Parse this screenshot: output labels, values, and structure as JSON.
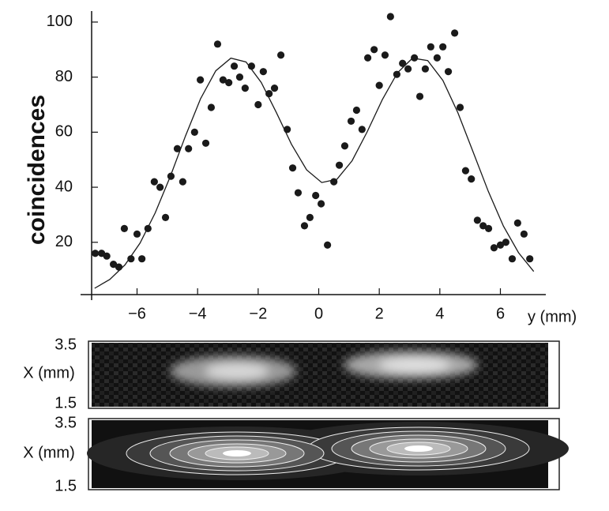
{
  "chart_data": [
    {
      "type": "scatter",
      "ylabel": "coincidences",
      "xlabel": "y (mm)",
      "color": "#1a1a1a",
      "line_color": "#1a1a1a",
      "xlim": [
        -7.5,
        7.5
      ],
      "ylim": [
        1,
        104
      ],
      "xticks": [
        {
          "value": -6,
          "label": "−6"
        },
        {
          "value": -4,
          "label": "−4"
        },
        {
          "value": -2,
          "label": "−2"
        },
        0,
        2,
        4,
        6
      ],
      "yticks": [
        20,
        40,
        60,
        80,
        100
      ],
      "x": [
        -7.38,
        -7.17,
        -7.0,
        -6.78,
        -6.6,
        -6.42,
        -6.2,
        -6.0,
        -5.84,
        -5.64,
        -5.43,
        -5.24,
        -5.06,
        -4.88,
        -4.67,
        -4.49,
        -4.3,
        -4.1,
        -3.91,
        -3.73,
        -3.55,
        -3.34,
        -3.16,
        -2.97,
        -2.79,
        -2.61,
        -2.43,
        -2.22,
        -2.0,
        -1.83,
        -1.64,
        -1.46,
        -1.25,
        -1.04,
        -0.86,
        -0.68,
        -0.47,
        -0.29,
        -0.1,
        0.08,
        0.29,
        0.5,
        0.68,
        0.86,
        1.07,
        1.25,
        1.43,
        1.62,
        1.83,
        2.0,
        2.19,
        2.37,
        2.58,
        2.77,
        2.95,
        3.16,
        3.34,
        3.52,
        3.7,
        3.91,
        4.1,
        4.28,
        4.49,
        4.67,
        4.85,
        5.04,
        5.24,
        5.43,
        5.61,
        5.79,
        6.0,
        6.18,
        6.39,
        6.57,
        6.78,
        6.97
      ],
      "values": [
        16,
        16,
        15,
        12,
        11,
        25,
        14,
        23,
        14,
        25,
        42,
        40,
        29,
        44,
        54,
        42,
        54,
        60,
        79,
        56,
        69,
        92,
        79,
        78,
        84,
        80,
        76,
        84,
        70,
        82,
        74,
        76,
        88,
        61,
        47,
        38,
        26,
        29,
        37,
        34,
        19,
        42,
        48,
        55,
        64,
        68,
        61,
        87,
        90,
        77,
        88,
        102,
        81,
        85,
        83,
        87,
        73,
        83,
        91,
        87,
        91,
        82,
        96,
        69,
        46,
        43,
        28,
        26,
        25,
        18,
        19,
        20,
        14,
        27,
        23,
        14
      ],
      "fit_x": [
        -7.4,
        -6.9,
        -6.4,
        -5.9,
        -5.4,
        -4.9,
        -4.4,
        -3.9,
        -3.4,
        -2.9,
        -2.4,
        -1.9,
        -1.4,
        -0.9,
        -0.4,
        0.1,
        0.6,
        1.1,
        1.6,
        2.1,
        2.6,
        3.1,
        3.6,
        4.1,
        4.6,
        5.1,
        5.6,
        6.1,
        6.6,
        7.1
      ],
      "fit_values": [
        3.3,
        6.5,
        11.8,
        19.7,
        30.7,
        44.0,
        58.6,
        72.2,
        82.3,
        86.9,
        85.5,
        78.1,
        67.2,
        55.6,
        46.3,
        41.7,
        42.9,
        49.6,
        60.1,
        71.8,
        81.6,
        86.9,
        86.0,
        78.8,
        67.0,
        52.8,
        38.5,
        25.9,
        16.2,
        9.4
      ]
    },
    {
      "type": "heatmap",
      "ylabel": "X (mm)",
      "ylim": [
        1.5,
        3.5
      ],
      "yticks": [
        1.5,
        3.5
      ]
    },
    {
      "type": "contour",
      "ylabel": "X (mm)",
      "ylim": [
        1.5,
        3.5
      ],
      "yticks": [
        1.5,
        3.5
      ]
    }
  ]
}
